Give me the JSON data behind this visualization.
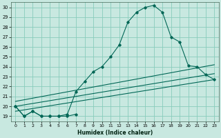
{
  "xlabel": "Humidex (Indice chaleur)",
  "bg_color": "#c8e8e0",
  "grid_color": "#88ccbb",
  "line_color": "#006655",
  "ylim": [
    18.5,
    30.5
  ],
  "xlim": [
    -0.5,
    23.5
  ],
  "yticks": [
    19,
    20,
    21,
    22,
    23,
    24,
    25,
    26,
    27,
    28,
    29,
    30
  ],
  "xticks": [
    0,
    1,
    2,
    3,
    4,
    5,
    6,
    7,
    8,
    9,
    10,
    11,
    12,
    13,
    14,
    15,
    16,
    17,
    18,
    19,
    20,
    21,
    22,
    23
  ],
  "series_main": {
    "x": [
      0,
      1,
      2,
      3,
      4,
      5,
      6,
      7,
      8,
      9,
      10,
      11,
      12,
      13,
      14,
      15,
      16,
      17,
      18,
      19,
      20,
      21,
      22,
      23
    ],
    "y": [
      20.0,
      19.0,
      19.5,
      19.0,
      19.0,
      19.0,
      19.2,
      21.5,
      22.5,
      23.5,
      24.0,
      25.0,
      26.2,
      28.5,
      29.5,
      30.0,
      30.2,
      29.5,
      27.0,
      26.5,
      24.1,
      24.0,
      23.2,
      22.7
    ]
  },
  "series_short": {
    "x": [
      0,
      1,
      2,
      3,
      4,
      5,
      6,
      7
    ],
    "y": [
      20.0,
      19.0,
      19.5,
      19.0,
      19.0,
      19.0,
      19.0,
      19.2
    ]
  },
  "ref_lines": [
    {
      "x": [
        0,
        23
      ],
      "y": [
        19.5,
        22.7
      ]
    },
    {
      "x": [
        0,
        23
      ],
      "y": [
        20.0,
        23.3
      ]
    },
    {
      "x": [
        0,
        23
      ],
      "y": [
        20.5,
        24.2
      ]
    }
  ]
}
